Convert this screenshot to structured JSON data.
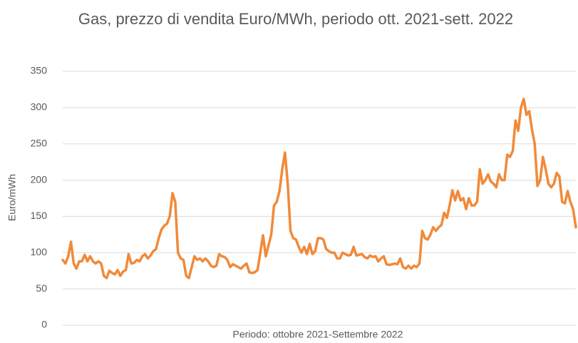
{
  "chart_data": {
    "type": "line",
    "title": "Gas, prezzo di vendita Euro/MWh, periodo ott. 2021-sett. 2022",
    "xlabel": "Periodo: ottobre 2021-Settembre 2022",
    "ylabel": "Euro/mWh",
    "ylim": [
      0,
      350
    ],
    "yticks": [
      0,
      50,
      100,
      150,
      200,
      250,
      300,
      350
    ],
    "grid": true,
    "series": [
      {
        "name": "Gas",
        "color": "#f08a3a",
        "values": [
          90,
          85,
          95,
          115,
          85,
          78,
          88,
          88,
          97,
          88,
          95,
          88,
          85,
          88,
          85,
          68,
          65,
          75,
          72,
          70,
          76,
          68,
          74,
          76,
          98,
          85,
          86,
          90,
          88,
          95,
          98,
          92,
          96,
          102,
          105,
          120,
          132,
          137,
          140,
          150,
          182,
          170,
          100,
          92,
          90,
          68,
          65,
          80,
          95,
          90,
          92,
          88,
          92,
          88,
          82,
          80,
          82,
          98,
          95,
          94,
          90,
          80,
          84,
          82,
          80,
          78,
          82,
          85,
          73,
          72,
          73,
          76,
          100,
          124,
          95,
          110,
          125,
          165,
          170,
          185,
          215,
          238,
          195,
          130,
          120,
          118,
          108,
          100,
          108,
          98,
          112,
          98,
          102,
          120,
          120,
          118,
          105,
          102,
          100,
          100,
          92,
          92,
          100,
          98,
          96,
          97,
          108,
          96,
          97,
          98,
          94,
          92,
          96,
          94,
          95,
          88,
          92,
          95,
          84,
          83,
          84,
          85,
          84,
          92,
          80,
          78,
          82,
          78,
          82,
          80,
          85,
          130,
          120,
          118,
          125,
          135,
          130,
          135,
          138,
          155,
          148,
          165,
          186,
          172,
          185,
          172,
          175,
          160,
          175,
          165,
          165,
          170,
          215,
          195,
          200,
          208,
          198,
          195,
          190,
          208,
          200,
          200,
          235,
          232,
          240,
          282,
          268,
          300,
          312,
          290,
          295,
          270,
          250,
          192,
          200,
          232,
          215,
          195,
          190,
          195,
          210,
          205,
          170,
          168,
          185,
          170,
          160,
          135
        ]
      }
    ]
  }
}
